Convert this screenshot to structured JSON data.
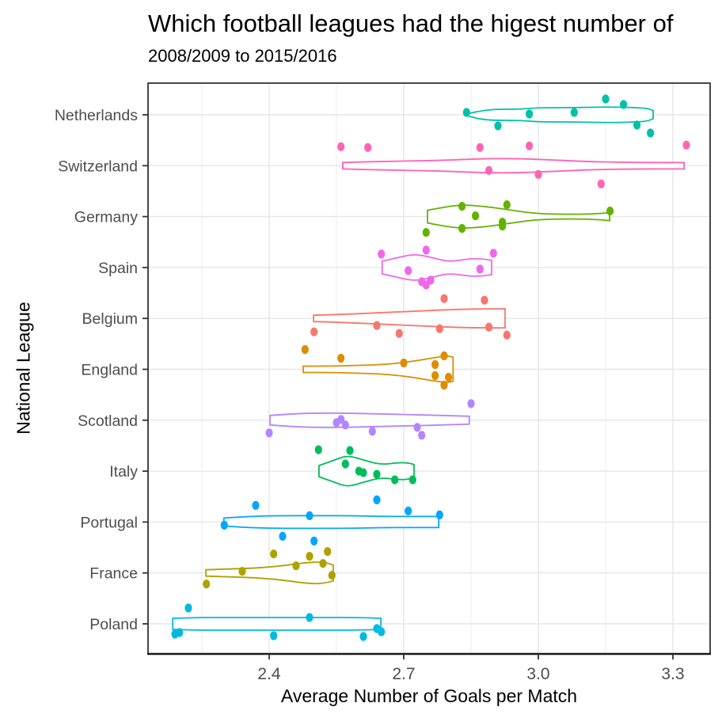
{
  "title": "Which football leagues had the higest number of",
  "subtitle": "2008/2009 to 2015/2016",
  "chart_data": {
    "type": "violin",
    "title": "Which football leagues had the higest number of",
    "subtitle": "2008/2009 to 2015/2016",
    "xlabel": "Average Number of Goals per Match",
    "ylabel": "National League",
    "xlim": [
      2.13,
      3.383
    ],
    "x_ticks": [
      2.4,
      2.7,
      3.0,
      3.3
    ],
    "x_tick_labels": [
      "2.4",
      "2.7",
      "3.0",
      "3.3"
    ],
    "x_minor_ticks": [
      2.25,
      2.55,
      2.85,
      3.15
    ],
    "grid": true,
    "legend": "none",
    "panel_border_color": "#333333",
    "grid_color": "#e6e6e6",
    "tick_label_color": "#4d4d4d",
    "series": [
      {
        "name": "Netherlands",
        "color": "#00C1A7",
        "points": [
          {
            "x": 2.84,
            "dy": -3
          },
          {
            "x": 2.91,
            "dy": 14
          },
          {
            "x": 2.98,
            "dy": -1
          },
          {
            "x": 3.08,
            "dy": -3
          },
          {
            "x": 3.15,
            "dy": -20
          },
          {
            "x": 3.19,
            "dy": -13
          },
          {
            "x": 3.22,
            "dy": 13
          },
          {
            "x": 3.25,
            "dy": 23
          }
        ],
        "violin": [
          [
            2.841,
            1
          ],
          [
            2.88,
            7
          ],
          [
            2.96,
            7
          ],
          [
            3.0,
            9
          ],
          [
            3.08,
            9
          ],
          [
            3.16,
            10
          ],
          [
            3.22,
            9
          ],
          [
            3.245,
            8
          ],
          [
            3.256,
            5
          ]
        ]
      },
      {
        "name": "Switzerland",
        "color": "#FF63B6",
        "points": [
          {
            "x": 2.56,
            "dy": -24
          },
          {
            "x": 2.62,
            "dy": -23
          },
          {
            "x": 2.87,
            "dy": -23
          },
          {
            "x": 2.89,
            "dy": 6
          },
          {
            "x": 2.98,
            "dy": -25
          },
          {
            "x": 3.0,
            "dy": 11
          },
          {
            "x": 3.14,
            "dy": 23
          },
          {
            "x": 3.33,
            "dy": -26
          }
        ],
        "violin": [
          [
            2.564,
            4
          ],
          [
            2.62,
            5
          ],
          [
            2.72,
            6
          ],
          [
            2.8,
            7
          ],
          [
            2.88,
            9
          ],
          [
            2.96,
            9
          ],
          [
            3.04,
            7
          ],
          [
            3.12,
            5
          ],
          [
            3.22,
            4
          ],
          [
            3.325,
            4
          ]
        ]
      },
      {
        "name": "Germany",
        "color": "#64B200",
        "points": [
          {
            "x": 2.83,
            "dy": -13
          },
          {
            "x": 2.86,
            "dy": -1
          },
          {
            "x": 2.93,
            "dy": -15
          },
          {
            "x": 2.92,
            "dy": 7
          },
          {
            "x": 2.92,
            "dy": 12
          },
          {
            "x": 2.83,
            "dy": 15
          },
          {
            "x": 2.75,
            "dy": 20
          },
          {
            "x": 3.16,
            "dy": -7
          }
        ],
        "violin": [
          [
            2.753,
            8
          ],
          [
            2.79,
            12
          ],
          [
            2.83,
            15
          ],
          [
            2.88,
            13
          ],
          [
            2.93,
            9
          ],
          [
            2.99,
            4
          ],
          [
            3.05,
            3
          ],
          [
            3.1,
            3
          ],
          [
            3.14,
            4
          ],
          [
            3.159,
            5
          ]
        ]
      },
      {
        "name": "Spain",
        "color": "#EF67EB",
        "points": [
          {
            "x": 2.65,
            "dy": -17
          },
          {
            "x": 2.75,
            "dy": -22
          },
          {
            "x": 2.9,
            "dy": -18
          },
          {
            "x": 2.71,
            "dy": 4
          },
          {
            "x": 2.87,
            "dy": 2
          },
          {
            "x": 2.74,
            "dy": 18
          },
          {
            "x": 2.75,
            "dy": 22
          },
          {
            "x": 2.76,
            "dy": 16
          }
        ],
        "violin": [
          [
            2.652,
            8
          ],
          [
            2.69,
            13
          ],
          [
            2.725,
            17
          ],
          [
            2.76,
            13
          ],
          [
            2.8,
            7
          ],
          [
            2.845,
            11
          ],
          [
            2.875,
            11
          ],
          [
            2.896,
            9
          ]
        ]
      },
      {
        "name": "Belgium",
        "color": "#F8766D",
        "points": [
          {
            "x": 2.79,
            "dy": -25
          },
          {
            "x": 2.88,
            "dy": -23
          },
          {
            "x": 2.64,
            "dy": 9
          },
          {
            "x": 2.5,
            "dy": 17
          },
          {
            "x": 2.69,
            "dy": 19
          },
          {
            "x": 2.78,
            "dy": 13
          },
          {
            "x": 2.89,
            "dy": 11
          },
          {
            "x": 2.93,
            "dy": 21
          }
        ],
        "violin": [
          [
            2.499,
            4
          ],
          [
            2.56,
            5
          ],
          [
            2.64,
            7
          ],
          [
            2.72,
            9
          ],
          [
            2.8,
            11
          ],
          [
            2.87,
            12
          ],
          [
            2.926,
            12
          ]
        ]
      },
      {
        "name": "England",
        "color": "#DB8E00",
        "points": [
          {
            "x": 2.48,
            "dy": -25
          },
          {
            "x": 2.56,
            "dy": -14
          },
          {
            "x": 2.7,
            "dy": -8
          },
          {
            "x": 2.79,
            "dy": -17
          },
          {
            "x": 2.77,
            "dy": -6
          },
          {
            "x": 2.77,
            "dy": 8
          },
          {
            "x": 2.8,
            "dy": 10
          },
          {
            "x": 2.79,
            "dy": 20
          }
        ],
        "violin": [
          [
            2.476,
            4
          ],
          [
            2.54,
            4
          ],
          [
            2.6,
            5
          ],
          [
            2.66,
            6
          ],
          [
            2.72,
            10
          ],
          [
            2.77,
            15
          ],
          [
            2.8,
            17
          ],
          [
            2.81,
            15
          ]
        ]
      },
      {
        "name": "Scotland",
        "color": "#B385FF",
        "points": [
          {
            "x": 2.85,
            "dy": -21
          },
          {
            "x": 2.56,
            "dy": -1
          },
          {
            "x": 2.57,
            "dy": 6
          },
          {
            "x": 2.55,
            "dy": 3
          },
          {
            "x": 2.4,
            "dy": 16
          },
          {
            "x": 2.63,
            "dy": 14
          },
          {
            "x": 2.73,
            "dy": 9
          },
          {
            "x": 2.74,
            "dy": 19
          }
        ],
        "violin": [
          [
            2.402,
            6
          ],
          [
            2.45,
            8
          ],
          [
            2.5,
            9
          ],
          [
            2.57,
            9
          ],
          [
            2.64,
            8
          ],
          [
            2.72,
            7
          ],
          [
            2.79,
            6
          ],
          [
            2.846,
            5
          ]
        ]
      },
      {
        "name": "Italy",
        "color": "#00BD5C",
        "points": [
          {
            "x": 2.51,
            "dy": -27
          },
          {
            "x": 2.58,
            "dy": -26
          },
          {
            "x": 2.57,
            "dy": -9
          },
          {
            "x": 2.6,
            "dy": 0
          },
          {
            "x": 2.61,
            "dy": 2
          },
          {
            "x": 2.64,
            "dy": 4
          },
          {
            "x": 2.68,
            "dy": 11
          },
          {
            "x": 2.72,
            "dy": 11
          }
        ],
        "violin": [
          [
            2.511,
            7
          ],
          [
            2.545,
            14
          ],
          [
            2.575,
            20
          ],
          [
            2.61,
            14
          ],
          [
            2.65,
            8
          ],
          [
            2.69,
            11
          ],
          [
            2.715,
            10
          ],
          [
            2.723,
            8
          ]
        ]
      },
      {
        "name": "Portugal",
        "color": "#00A6FF",
        "points": [
          {
            "x": 2.37,
            "dy": -21
          },
          {
            "x": 2.64,
            "dy": -28
          },
          {
            "x": 2.49,
            "dy": -8
          },
          {
            "x": 2.71,
            "dy": -14
          },
          {
            "x": 2.78,
            "dy": -9
          },
          {
            "x": 2.3,
            "dy": 4
          },
          {
            "x": 2.43,
            "dy": 18
          },
          {
            "x": 2.5,
            "dy": 24
          }
        ],
        "violin": [
          [
            2.299,
            5
          ],
          [
            2.35,
            7
          ],
          [
            2.42,
            8
          ],
          [
            2.5,
            8
          ],
          [
            2.58,
            8
          ],
          [
            2.66,
            7
          ],
          [
            2.72,
            7
          ],
          [
            2.778,
            7
          ]
        ]
      },
      {
        "name": "France",
        "color": "#AEA200",
        "points": [
          {
            "x": 2.41,
            "dy": -24
          },
          {
            "x": 2.49,
            "dy": -21
          },
          {
            "x": 2.53,
            "dy": -27
          },
          {
            "x": 2.46,
            "dy": -9
          },
          {
            "x": 2.52,
            "dy": -12
          },
          {
            "x": 2.34,
            "dy": -2
          },
          {
            "x": 2.54,
            "dy": 3
          },
          {
            "x": 2.26,
            "dy": 14
          }
        ],
        "violin": [
          [
            2.259,
            4
          ],
          [
            2.31,
            5
          ],
          [
            2.37,
            6
          ],
          [
            2.43,
            9
          ],
          [
            2.48,
            13
          ],
          [
            2.52,
            14
          ],
          [
            2.543,
            10
          ]
        ]
      },
      {
        "name": "Poland",
        "color": "#00BADE",
        "points": [
          {
            "x": 2.22,
            "dy": -20
          },
          {
            "x": 2.49,
            "dy": -8
          },
          {
            "x": 2.19,
            "dy": 13
          },
          {
            "x": 2.2,
            "dy": 11
          },
          {
            "x": 2.41,
            "dy": 15
          },
          {
            "x": 2.61,
            "dy": 16
          },
          {
            "x": 2.64,
            "dy": 6
          },
          {
            "x": 2.65,
            "dy": 10
          }
        ],
        "violin": [
          [
            2.185,
            7
          ],
          [
            2.24,
            8
          ],
          [
            2.32,
            8
          ],
          [
            2.42,
            8
          ],
          [
            2.52,
            8
          ],
          [
            2.6,
            8
          ],
          [
            2.649,
            7
          ]
        ]
      }
    ]
  }
}
